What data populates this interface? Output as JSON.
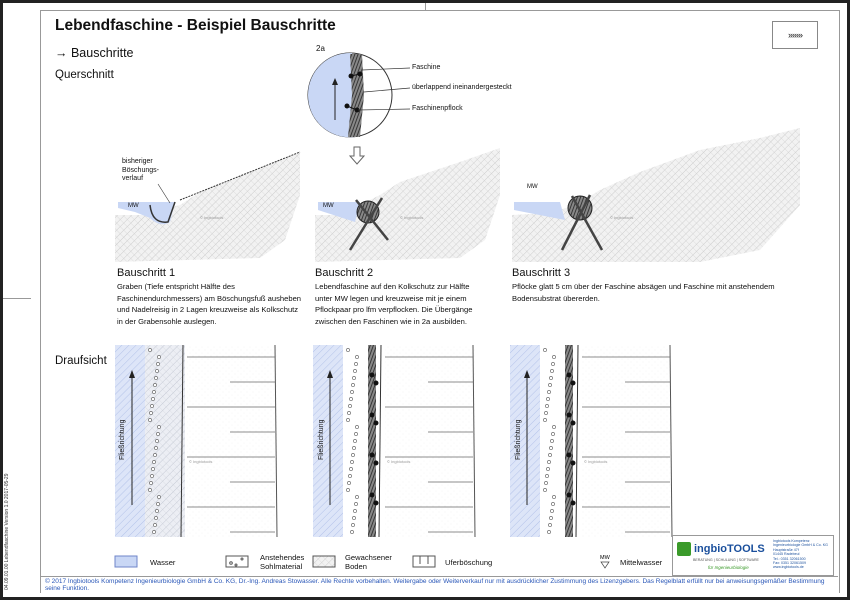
{
  "header": {
    "title": "Lebendfaschine - Beispiel Bauschritte",
    "subtitle": "→ Bauschritte",
    "nav_button": "›››››››"
  },
  "sections": {
    "cross_section": "Querschnitt",
    "plan_view": "Draufsicht"
  },
  "detail": {
    "label": "2a",
    "callouts": [
      "Faschine",
      "überlappend ineinandergesteckt",
      "Faschinenpflock"
    ]
  },
  "cross_section_labels": {
    "previous_slope": "bisheriger Böschungs-verlauf",
    "previous_slope_lines": [
      "bisheriger",
      "Böschungs-",
      "verlauf"
    ],
    "mw": "MW",
    "watermark": "© Ingbiotools"
  },
  "steps": [
    {
      "title": "Bauschritt 1",
      "text": "Graben (Tiefe entspricht Hälfte des Faschinendurchmessers) am Böschungsfuß ausheben und Nadelreisig in 2 Lagen kreuzweise als Kolkschutz in der Grabensohle auslegen."
    },
    {
      "title": "Bauschritt 2",
      "text": "Lebendfaschine auf den Kolkschutz zur Hälfte unter MW legen und kreuzweise mit je einem Pflockpaar pro lfm verpflocken. Die Übergänge zwischen den Faschinen wie in 2a ausbilden."
    },
    {
      "title": "Bauschritt 3",
      "text": "Pflöcke glatt 5 cm über der Faschine absägen und Faschine mit anstehendem Bodensubstrat übererden."
    }
  ],
  "plan_labels": {
    "flow_direction": "Fließrichtung",
    "watermark": "© Ingbiotools"
  },
  "legend": [
    {
      "icon": "water-swatch",
      "label": "Wasser"
    },
    {
      "icon": "bed-material-swatch",
      "label": "Anstehendes Sohlmaterial"
    },
    {
      "icon": "natural-soil-swatch",
      "label": "Gewachsener Boden"
    },
    {
      "icon": "bank-slope-swatch",
      "label": "Uferböschung"
    },
    {
      "icon": "mean-water-symbol",
      "label": "Mittelwasser",
      "symbol_text": "MW"
    }
  ],
  "colors": {
    "water": "#c9d7f5",
    "water_stroke": "#6f86c9",
    "brand_blue": "#1a4f9c",
    "brand_green": "#3a9a2a"
  },
  "logo": {
    "name": "ingbioTOOLS",
    "tagline": "BERATUNG | SCHULUNG | SOFTWARE",
    "slogan": "für Ingenieurbiologie",
    "address_lines": [
      "Ingbiotools Kompetenz",
      "Ingenieurbiologie GmbH & Co. KG",
      "Hauptstraße 47f",
      "01445 Radebeul",
      "Tel.: 0351 32061500",
      "Fax: 0351 32061509",
      "www.ingbiotools.de"
    ]
  },
  "footer": {
    "copyright": "© 2017 Ingbiotools Kompetenz Ingenieurbiologie GmbH & Co. KG, Dr.-Ing. Andreas Stowasser. Alle Rechte vorbehalten. Weitergabe oder Weiterverkauf nur mit ausdrücklicher Zustimmung des Lizenzgebers. Das Regelblatt erfüllt nur bei anweisungsgemäßer Bestimmung seine Funktion.",
    "doc_id": "04.09.01.00 Lebendfaschine  Version 1.0   2017-05-29"
  }
}
